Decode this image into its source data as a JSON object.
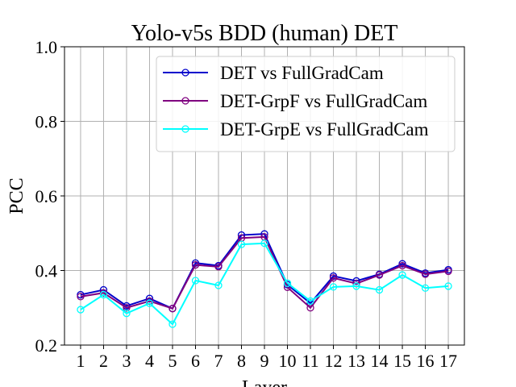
{
  "chart_data": {
    "type": "line",
    "title": "Yolo-v5s BDD (human) DET",
    "xlabel": "Layer",
    "ylabel": "PCC",
    "x": [
      1,
      2,
      3,
      4,
      5,
      6,
      7,
      8,
      9,
      10,
      11,
      12,
      13,
      14,
      15,
      16,
      17
    ],
    "xticks": [
      "1",
      "2",
      "3",
      "4",
      "5",
      "6",
      "7",
      "8",
      "9",
      "10",
      "11",
      "12",
      "13",
      "14",
      "15",
      "16",
      "17"
    ],
    "ylim": [
      0.2,
      1.0
    ],
    "yticks": [
      "0.2",
      "0.4",
      "0.6",
      "0.8",
      "1.0"
    ],
    "grid": true,
    "legend_position": "top-right",
    "series": [
      {
        "name": "DET vs FullGradCam",
        "color": "#0000cc",
        "values": [
          0.335,
          0.348,
          0.305,
          0.325,
          0.298,
          0.42,
          0.413,
          0.495,
          0.498,
          0.362,
          0.312,
          0.385,
          0.372,
          0.39,
          0.418,
          0.393,
          0.402
        ]
      },
      {
        "name": "DET-GrpF vs FullGradCam",
        "color": "#800080",
        "values": [
          0.33,
          0.34,
          0.3,
          0.318,
          0.298,
          0.415,
          0.41,
          0.487,
          0.49,
          0.355,
          0.3,
          0.38,
          0.365,
          0.388,
          0.413,
          0.39,
          0.398
        ]
      },
      {
        "name": "DET-GrpE vs FullGradCam",
        "color": "#00ffff",
        "values": [
          0.295,
          0.335,
          0.285,
          0.312,
          0.256,
          0.373,
          0.36,
          0.47,
          0.473,
          0.366,
          0.318,
          0.356,
          0.358,
          0.348,
          0.388,
          0.353,
          0.358
        ]
      }
    ]
  }
}
